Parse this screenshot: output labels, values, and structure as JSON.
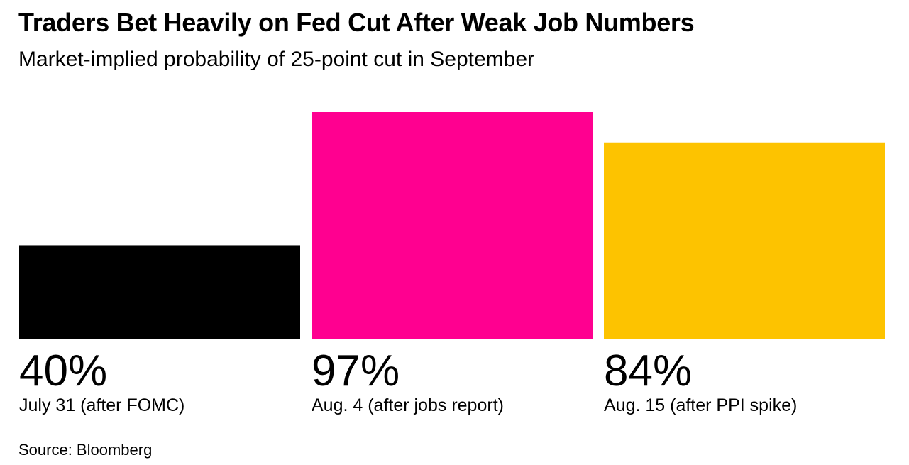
{
  "title": "Traders Bet Heavily on Fed Cut After Weak Job Numbers",
  "subtitle": "Market-implied probability of 25-point cut in September",
  "source": "Source: Bloomberg",
  "chart_data": {
    "type": "bar",
    "categories": [
      "July 31 (after FOMC)",
      "Aug. 4 (after jobs report)",
      "Aug. 15 (after PPI spike)"
    ],
    "values": [
      40,
      97,
      84
    ],
    "value_labels": [
      "40%",
      "97%",
      "84%"
    ],
    "colors": [
      "#000000",
      "#ff0090",
      "#fdc300"
    ],
    "ylim": [
      0,
      100
    ],
    "grid": false,
    "legend": "none"
  }
}
